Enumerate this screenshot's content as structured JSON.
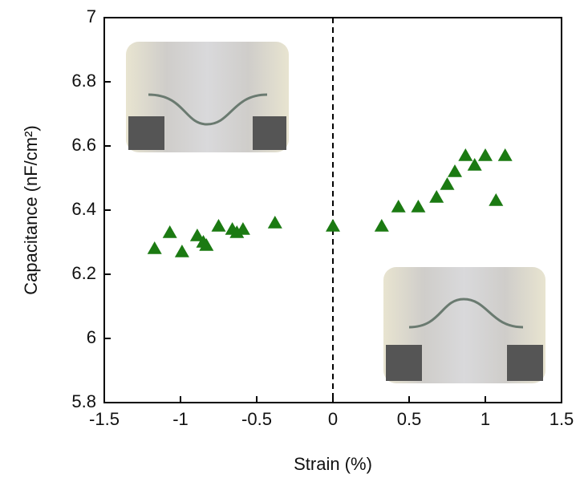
{
  "chart_data": {
    "type": "scatter",
    "xlabel": "Strain (%)",
    "ylabel": "Capacitance (nF/cm²)",
    "x": [
      -1.17,
      -1.07,
      -0.99,
      -0.89,
      -0.85,
      -0.83,
      -0.75,
      -0.66,
      -0.63,
      -0.59,
      -0.38,
      0,
      0.32,
      0.43,
      0.56,
      0.68,
      0.75,
      0.8,
      0.87,
      0.93,
      1.0,
      1.07,
      1.13
    ],
    "values": [
      6.28,
      6.33,
      6.27,
      6.32,
      6.3,
      6.29,
      6.35,
      6.34,
      6.33,
      6.34,
      6.36,
      6.35,
      6.35,
      6.41,
      6.41,
      6.44,
      6.48,
      6.52,
      6.57,
      6.54,
      6.57,
      6.43,
      6.57
    ],
    "color": "#1b7a12",
    "marker": "triangle",
    "xlim": [
      -1.5,
      1.5
    ],
    "xticks": [
      -1.5,
      -1,
      -0.5,
      0,
      0.5,
      1,
      1.5
    ],
    "ylim": [
      5.8,
      7
    ],
    "yticks": [
      5.8,
      6,
      6.2,
      6.4,
      6.6,
      6.8,
      7
    ],
    "reference_line_x": 0,
    "grid": false
  }
}
